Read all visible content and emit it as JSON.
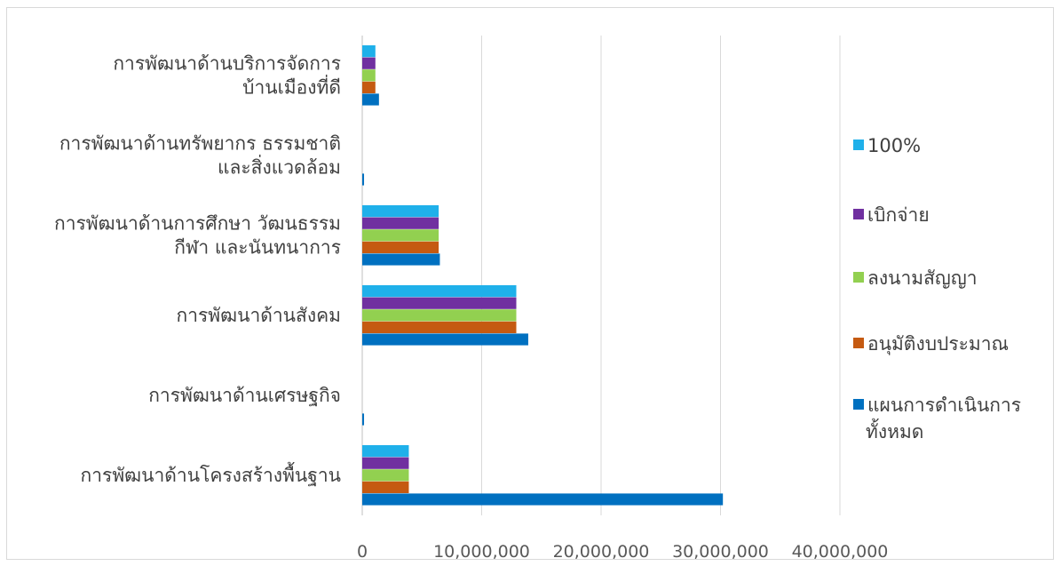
{
  "chart_data": {
    "type": "bar",
    "orientation": "horizontal",
    "categories": [
      [
        "การพัฒนาด้านบริการจัดการ",
        "บ้านเมืองที่ดี"
      ],
      [
        "การพัฒนาด้านทรัพยากร ธรรมชาติ",
        "และสิ่งแวดล้อม"
      ],
      [
        "การพัฒนาด้านการศึกษา วัฒนธรรม",
        "กีฬา และนันทนาการ"
      ],
      [
        "การพัฒนาด้านสังคม"
      ],
      [
        "การพัฒนาด้านเศรษฐกิจ"
      ],
      [
        "การพัฒนาด้านโครงสร้างพื้นฐาน"
      ]
    ],
    "series": [
      {
        "name": "100%",
        "color": "#1fb0ea",
        "values": [
          1100000,
          0,
          6400000,
          12900000,
          0,
          3900000
        ]
      },
      {
        "name": "เบิกจ่าย",
        "color": "#7030a0",
        "values": [
          1100000,
          0,
          6400000,
          12900000,
          0,
          3900000
        ]
      },
      {
        "name": "ลงนามสัญญา",
        "color": "#92d050",
        "values": [
          1100000,
          0,
          6400000,
          12900000,
          0,
          3900000
        ]
      },
      {
        "name": "อนุมัติงบประมาณ",
        "color": "#c55a11",
        "values": [
          1100000,
          0,
          6400000,
          12900000,
          0,
          3900000
        ]
      },
      {
        "name": "แผนการดำเนินการทั้งหมด",
        "name_lines": [
          "แผนการดำเนินการ",
          "ทั้งหมด"
        ],
        "color": "#0070c0",
        "values": [
          1400000,
          150000,
          6500000,
          13900000,
          150000,
          30200000
        ]
      }
    ],
    "xlim": [
      0,
      40000000
    ],
    "xticks": [
      "0",
      "10,000,000",
      "20,000,000",
      "30,000,000",
      "40,000,000"
    ],
    "grid": true,
    "legend_position": "right"
  }
}
